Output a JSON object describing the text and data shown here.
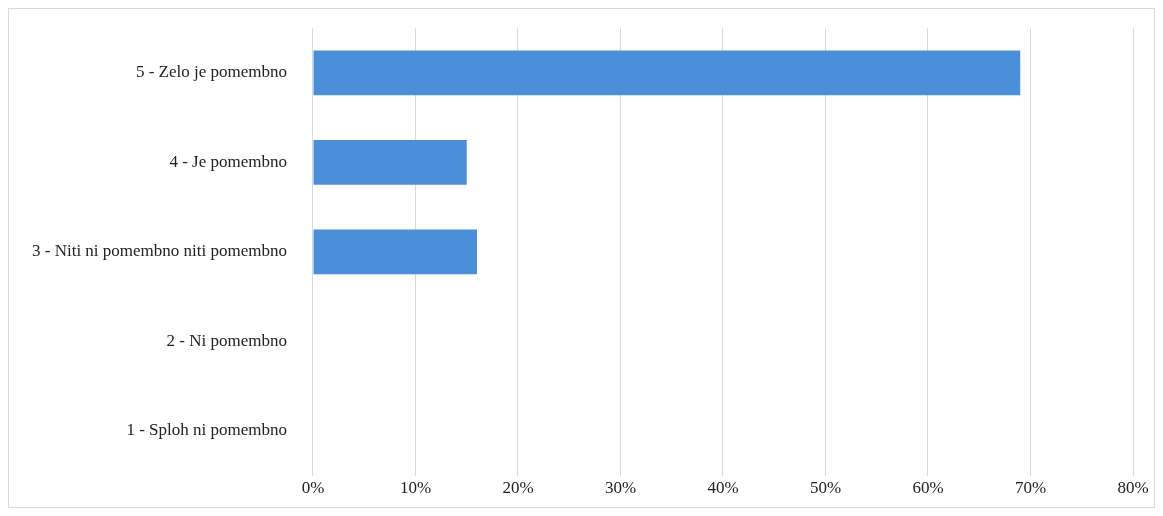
{
  "chart_data": {
    "type": "bar",
    "orientation": "horizontal",
    "categories": [
      "5 - Zelo je pomembno",
      "4 - Je pomembno",
      "3 - Niti ni pomembno niti pomembno",
      "2 - Ni pomembno",
      "1 - Sploh ni pomembno"
    ],
    "values": [
      69,
      15,
      16,
      0,
      0
    ],
    "color": "#4a8fd8",
    "xlim": [
      0,
      80
    ],
    "xticks": [
      {
        "value": 0,
        "label": "0%"
      },
      {
        "value": 10,
        "label": "10%"
      },
      {
        "value": 20,
        "label": "20%"
      },
      {
        "value": 30,
        "label": "30%"
      },
      {
        "value": 40,
        "label": "40%"
      },
      {
        "value": 50,
        "label": "50%"
      },
      {
        "value": 60,
        "label": "60%"
      },
      {
        "value": 70,
        "label": "70%"
      },
      {
        "value": 80,
        "label": "80%"
      }
    ],
    "grid": "x",
    "legend": false
  }
}
